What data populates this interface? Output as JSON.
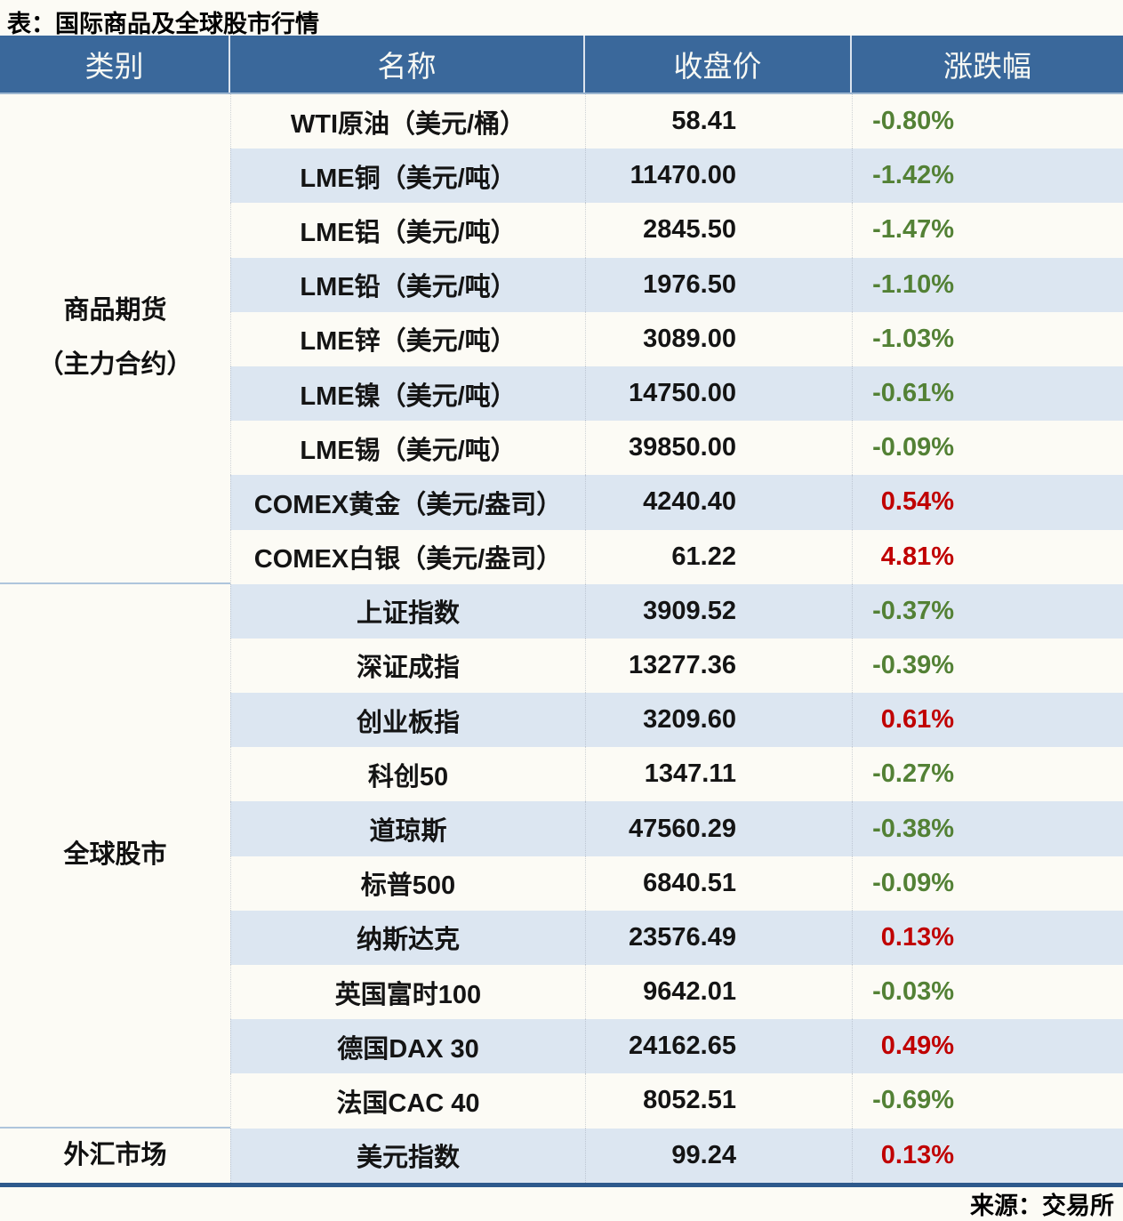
{
  "chart_data": {
    "type": "table",
    "title": "表：国际商品及全球股市行情",
    "source": "来源：交易所",
    "columns": [
      "类别",
      "名称",
      "收盘价",
      "涨跌幅"
    ],
    "groups": [
      {
        "category_lines": [
          "商品期货",
          "（主力合约）"
        ],
        "rows": [
          [
            "WTI原油（美元/桶）",
            "58.41",
            "-0.80%"
          ],
          [
            "LME铜（美元/吨）",
            "11470.00",
            "-1.42%"
          ],
          [
            "LME铝（美元/吨）",
            "2845.50",
            "-1.47%"
          ],
          [
            "LME铅（美元/吨）",
            "1976.50",
            "-1.10%"
          ],
          [
            "LME锌（美元/吨）",
            "3089.00",
            "-1.03%"
          ],
          [
            "LME镍（美元/吨）",
            "14750.00",
            "-0.61%"
          ],
          [
            "LME锡（美元/吨）",
            "39850.00",
            "-0.09%"
          ],
          [
            "COMEX黄金（美元/盎司）",
            "4240.40",
            "0.54%"
          ],
          [
            "COMEX白银（美元/盎司）",
            "61.22",
            "4.81%"
          ]
        ]
      },
      {
        "category_lines": [
          "全球股市"
        ],
        "rows": [
          [
            "上证指数",
            "3909.52",
            "-0.37%"
          ],
          [
            "深证成指",
            "13277.36",
            "-0.39%"
          ],
          [
            "创业板指",
            "3209.60",
            "0.61%"
          ],
          [
            "科创50",
            "1347.11",
            "-0.27%"
          ],
          [
            "道琼斯",
            "47560.29",
            "-0.38%"
          ],
          [
            "标普500",
            "6840.51",
            "-0.09%"
          ],
          [
            "纳斯达克",
            "23576.49",
            "0.13%"
          ],
          [
            "英国富时100",
            "9642.01",
            "-0.03%"
          ],
          [
            "德国DAX 30",
            "24162.65",
            "0.49%"
          ],
          [
            "法国CAC 40",
            "8052.51",
            "-0.69%"
          ]
        ]
      },
      {
        "category_lines": [
          "外汇市场"
        ],
        "rows": [
          [
            "美元指数",
            "99.24",
            "0.13%"
          ]
        ]
      }
    ],
    "colors": {
      "header_bg": "#3A689B",
      "header_text": "#F8F9F4",
      "row_bg": "#FCFBF5",
      "row_alt_bg": "#DCE6F1",
      "group_separator": "#AEC5DC",
      "bottom_border": "#2E5A8C",
      "negative": "#538135",
      "positive": "#C00000"
    },
    "layout": {
      "grid": "alternating row shading",
      "legend": "none"
    }
  }
}
